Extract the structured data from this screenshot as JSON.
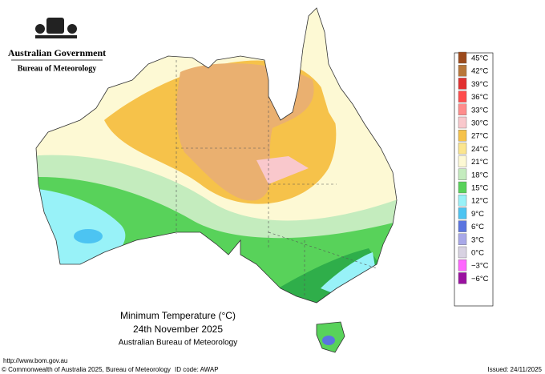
{
  "logo": {
    "line1": "Australian Government",
    "line2": "Bureau of Meteorology"
  },
  "legend": [
    {
      "label": "45°C",
      "color": "#9c4a1c"
    },
    {
      "label": "42°C",
      "color": "#b8773a"
    },
    {
      "label": "39°C",
      "color": "#e23030"
    },
    {
      "label": "36°C",
      "color": "#ff4c4c"
    },
    {
      "label": "33°C",
      "color": "#ff8c8c"
    },
    {
      "label": "30°C",
      "color": "#f9c8cc"
    },
    {
      "label": "27°C",
      "color": "#f6c24a"
    },
    {
      "label": "24°C",
      "color": "#fbe58e"
    },
    {
      "label": "21°C",
      "color": "#fdf9d4"
    },
    {
      "label": "18°C",
      "color": "#c4ecbe"
    },
    {
      "label": "15°C",
      "color": "#58d25a"
    },
    {
      "label": "12°C",
      "color": "#98f2f8"
    },
    {
      "label": "9°C",
      "color": "#4cc4f2"
    },
    {
      "label": "6°C",
      "color": "#5a74e0"
    },
    {
      "label": "3°C",
      "color": "#a8a8e8"
    },
    {
      "label": "0°C",
      "color": "#d8d2e2"
    },
    {
      "label": "−3°C",
      "color": "#ff66ff"
    },
    {
      "label": "−6°C",
      "color": "#9a10a0"
    }
  ],
  "caption": {
    "title": "Minimum Temperature (°C)",
    "date": "24th November 2025",
    "source": "Australian Bureau of Meteorology"
  },
  "footer": {
    "url": "http://www.bom.gov.au",
    "copyright": "© Commonwealth of Australia 2025, Bureau of Meteorology",
    "id_code": "ID code: AWAP",
    "issued": "Issued: 24/11/2025"
  }
}
